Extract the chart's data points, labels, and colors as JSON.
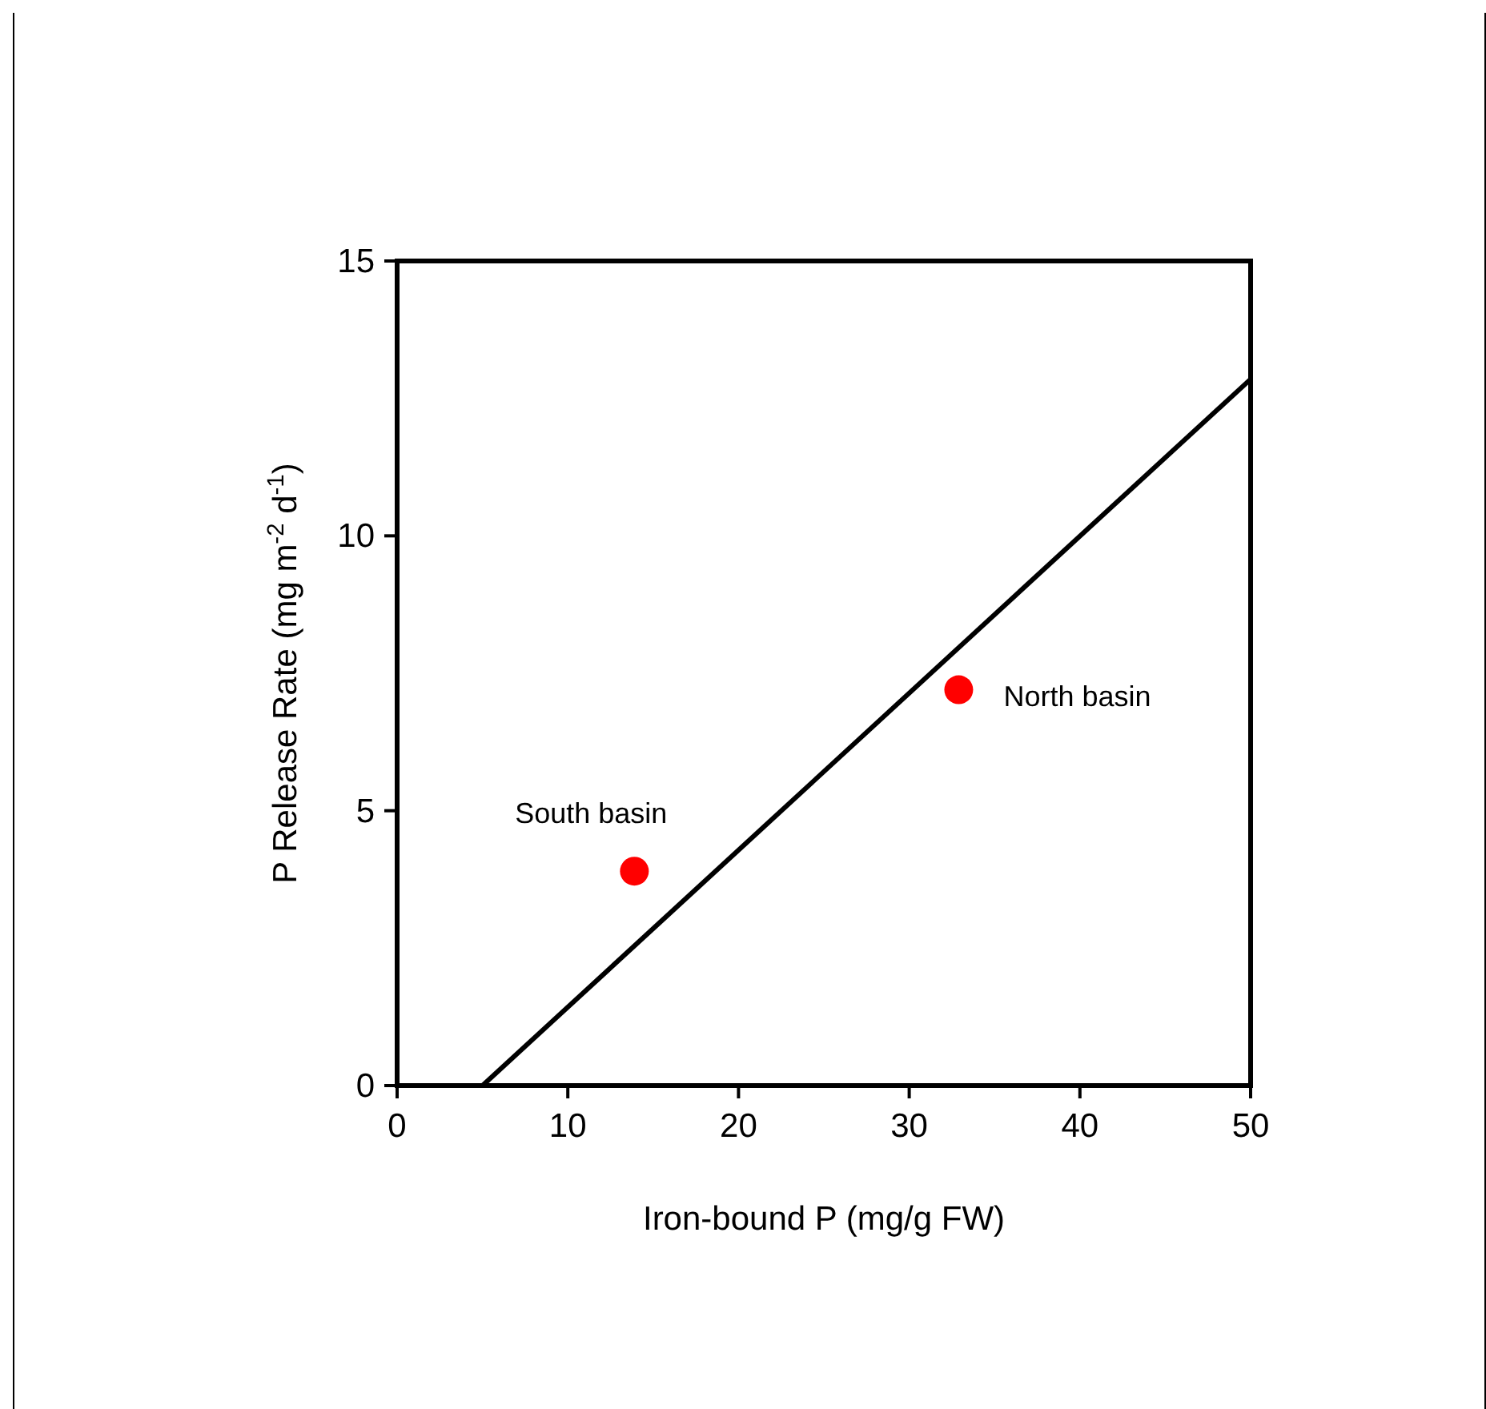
{
  "chart_data": {
    "type": "scatter",
    "xlabel": "Iron-bound P (mg/g FW)",
    "ylabel": "P Release Rate (mg m$^{-2}$ d$^{-1}$)",
    "xlim": [
      0,
      50
    ],
    "xticks": [
      0,
      10,
      20,
      30,
      40,
      50
    ],
    "ylim": [
      0,
      15
    ],
    "yticks": [
      0,
      5,
      10,
      15
    ],
    "grid": false,
    "marker": "circle",
    "series": [
      {
        "color": "#ff0000",
        "x": [
          13.9,
          32.9
        ],
        "values": [
          3.9,
          7.2
        ]
      },
      {
        "type": "line",
        "color": "#000000",
        "x": [
          5,
          50
        ],
        "values": [
          0,
          12.85
        ],
        "marker": "none",
        "line_style": "solid"
      }
    ],
    "annotations": [
      {
        "text": "South basin",
        "x": 13.9,
        "y": 3.9
      },
      {
        "text": "North basin",
        "x": 32.9,
        "y": 7.2
      }
    ]
  }
}
